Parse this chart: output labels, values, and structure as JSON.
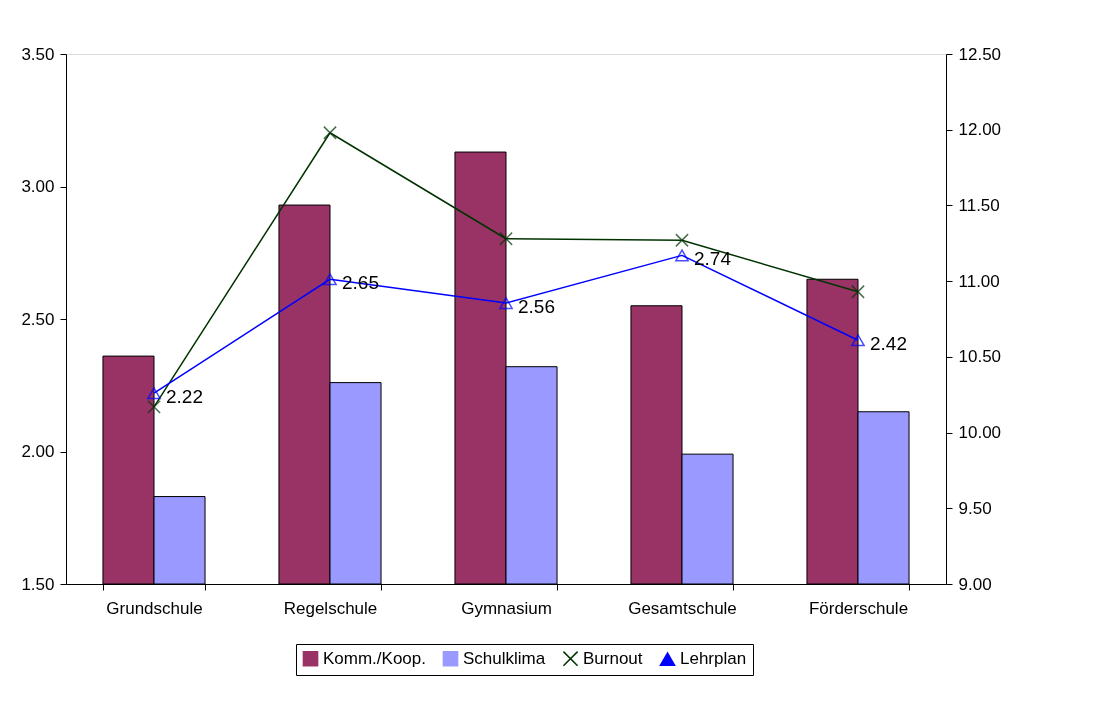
{
  "chart_data": {
    "type": "bar",
    "categories": [
      "Grundschule",
      "Regelschule",
      "Gymnasium",
      "Gesamtschule",
      "Förderschule"
    ],
    "series": [
      {
        "name": "Komm./Koop.",
        "color": "#993366",
        "values": [
          2.36,
          2.93,
          3.13,
          2.55,
          2.65
        ]
      },
      {
        "name": "Schulklima",
        "color": "#9999ff",
        "values": [
          1.83,
          2.26,
          2.32,
          1.99,
          2.15
        ]
      },
      {
        "name": "Burnout",
        "type": "line",
        "axis": "y2",
        "marker": "cross",
        "color": "#003300",
        "values": [
          10.17,
          11.98,
          11.28,
          11.27,
          10.93
        ]
      },
      {
        "name": "Lehrplan",
        "type": "line",
        "marker": "triangle",
        "color": "#0000ff",
        "values": [
          2.22,
          2.65,
          2.56,
          2.74,
          2.42
        ],
        "value_labels": [
          "2.22",
          "2.65",
          "2.56",
          "2.74",
          "2.42"
        ]
      }
    ],
    "ylim": [
      1.5,
      3.5
    ],
    "yticks": [
      {
        "value": 1.5,
        "label": "1.50"
      },
      {
        "value": 2.0,
        "label": "2.00"
      },
      {
        "value": 2.5,
        "label": "2.50"
      },
      {
        "value": 3.0,
        "label": "3.00"
      },
      {
        "value": 3.5,
        "label": "3.50"
      }
    ],
    "y2lim": [
      9.0,
      12.5
    ],
    "y2ticks": [
      {
        "value": 9.0,
        "label": "9.00"
      },
      {
        "value": 9.5,
        "label": "9.50"
      },
      {
        "value": 10.0,
        "label": "10.00"
      },
      {
        "value": 10.5,
        "label": "10.50"
      },
      {
        "value": 11.0,
        "label": "11.00"
      },
      {
        "value": 11.5,
        "label": "11.50"
      },
      {
        "value": 12.0,
        "label": "12.00"
      },
      {
        "value": 12.5,
        "label": "12.50"
      }
    ],
    "legend": "bottom",
    "grid": false
  }
}
